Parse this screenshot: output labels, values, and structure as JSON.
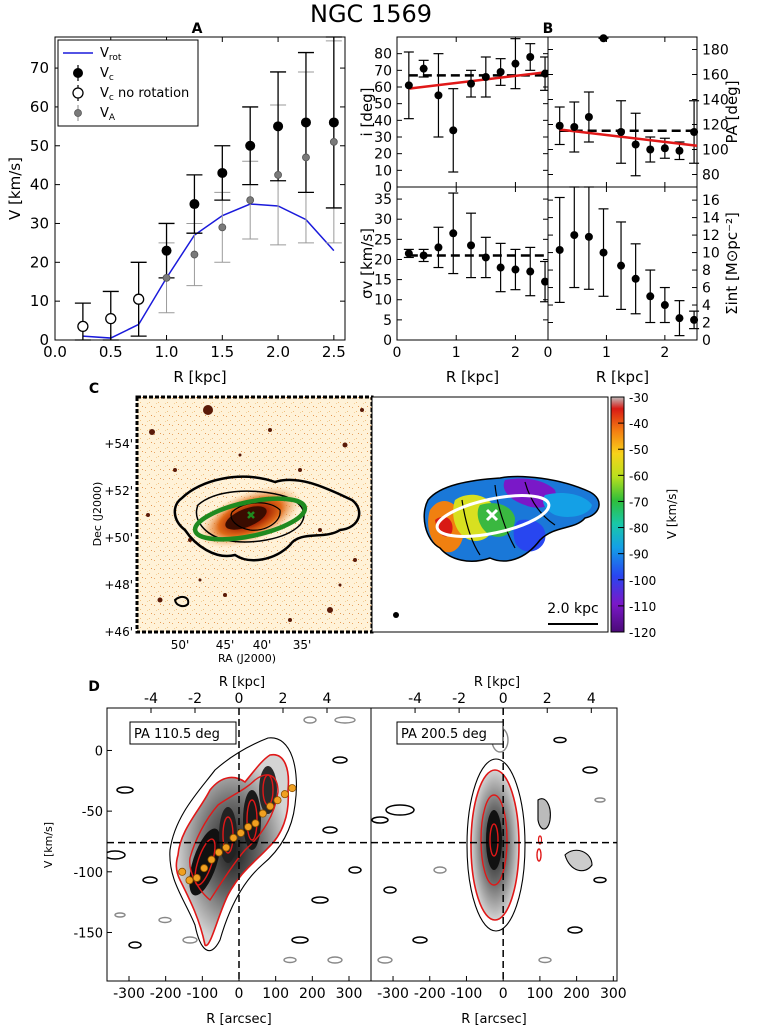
{
  "title": "NGC 1569",
  "panel_labels": {
    "a": "A",
    "b": "B",
    "c": "C",
    "d": "D"
  },
  "chart_data": [
    {
      "id": "A",
      "type": "scatter",
      "xlabel": "R [kpc]",
      "ylabel": "V [km/s]",
      "xlim": [
        0.0,
        2.6
      ],
      "ylim": [
        0,
        78
      ],
      "xticks": [
        0.0,
        0.5,
        1.0,
        1.5,
        2.0,
        2.5
      ],
      "xticklabels": [
        "0.0",
        "0.5",
        "1.0",
        "1.5",
        "2.0",
        "2.5"
      ],
      "yticks": [
        0,
        10,
        20,
        30,
        40,
        50,
        60,
        70
      ],
      "legend": {
        "position": "top-left",
        "entries": [
          {
            "sym": "line",
            "main": "V",
            "sub": "rot"
          },
          {
            "sym": "filled",
            "main": "V",
            "sub": "c"
          },
          {
            "sym": "open",
            "main": "V",
            "sub": "c",
            "tail": " no rotation"
          },
          {
            "sym": "grey",
            "main": "V",
            "sub": "A"
          }
        ]
      },
      "series": [
        {
          "name": "Vrot",
          "style": "line",
          "color": "#1a1adb",
          "x": [
            0.25,
            0.5,
            0.75,
            1.0,
            1.25,
            1.5,
            1.75,
            2.0,
            2.25,
            2.5
          ],
          "y": [
            1,
            0.5,
            4,
            16,
            27,
            32,
            35,
            34.5,
            31,
            23
          ]
        },
        {
          "name": "Vc",
          "style": "filled",
          "color": "#000000",
          "x": [
            1.0,
            1.25,
            1.5,
            1.75,
            2.0,
            2.25,
            2.5
          ],
          "y": [
            23,
            35,
            43,
            50,
            55,
            56,
            56
          ],
          "err": [
            7,
            7.5,
            7,
            10,
            14,
            18,
            22
          ]
        },
        {
          "name": "Vc no rotation",
          "style": "open",
          "color": "#000000",
          "x": [
            0.25,
            0.5,
            0.75
          ],
          "y": [
            3.5,
            5.5,
            10.5
          ],
          "err": [
            6,
            7,
            9.5
          ]
        },
        {
          "name": "VA",
          "style": "grey",
          "color": "#7a7a7a",
          "x": [
            1.0,
            1.25,
            1.5,
            1.75,
            2.0,
            2.25,
            2.5
          ],
          "y": [
            16,
            22,
            29,
            36,
            42.5,
            47,
            51
          ],
          "err": [
            9,
            8,
            9,
            10,
            18,
            22,
            26
          ]
        }
      ]
    },
    {
      "id": "B-i",
      "type": "scatter",
      "ylabel": "i [deg]",
      "xlim": [
        0.0,
        2.55
      ],
      "ylim": [
        0,
        90
      ],
      "yticks": [
        0,
        10,
        20,
        30,
        40,
        50,
        60,
        70,
        80
      ],
      "x": [
        0.2,
        0.45,
        0.7,
        0.95,
        1.25,
        1.5,
        1.75,
        2.0,
        2.25,
        2.5
      ],
      "y": [
        61,
        71,
        55,
        34,
        62,
        66,
        69,
        74,
        78,
        68
      ],
      "err": [
        20,
        5,
        25,
        25,
        8,
        12,
        8,
        15,
        8,
        10
      ],
      "fit": {
        "x": [
          0.2,
          2.55
        ],
        "y": [
          59,
          69
        ]
      },
      "mean": 67
    },
    {
      "id": "B-PA",
      "type": "scatter",
      "ylabel": "PA [deg]",
      "xlim": [
        0.0,
        2.55
      ],
      "ylim": [
        70,
        190
      ],
      "yticks": [
        80,
        100,
        120,
        140,
        160,
        180
      ],
      "yticks_side": "right",
      "x": [
        0.2,
        0.45,
        0.7,
        0.95,
        1.25,
        1.5,
        1.75,
        2.0,
        2.25,
        2.5
      ],
      "y": [
        119,
        118,
        126,
        189,
        114,
        104,
        100,
        101,
        99,
        114
      ],
      "err": [
        15,
        20,
        20,
        0,
        25,
        25,
        10,
        8,
        7,
        25
      ],
      "fit": {
        "x": [
          0.2,
          2.55
        ],
        "y": [
          116,
          103
        ]
      },
      "mean": 115
    },
    {
      "id": "B-sigma",
      "type": "scatter",
      "xlabel": "R [kpc]",
      "ylabel": "σv [km/s]",
      "xlim": [
        0.0,
        2.55
      ],
      "ylim": [
        0,
        38
      ],
      "yticks": [
        0,
        5,
        10,
        15,
        20,
        25,
        30,
        35
      ],
      "xticks": [
        0,
        1,
        2
      ],
      "x": [
        0.2,
        0.45,
        0.7,
        0.95,
        1.25,
        1.5,
        1.75,
        2.0,
        2.25,
        2.5
      ],
      "y": [
        21.5,
        21,
        23,
        26.5,
        23.5,
        20.5,
        18,
        17.5,
        17,
        14.5
      ],
      "err": [
        1,
        1.5,
        5,
        10,
        8,
        5,
        6,
        5,
        6,
        5
      ],
      "mean": 21
    },
    {
      "id": "B-sigma-int",
      "type": "scatter",
      "xlabel": "R [kpc]",
      "ylabel": "Σint [M⊙pc⁻²]",
      "xlim": [
        0.0,
        2.55
      ],
      "ylim": [
        0,
        17.5
      ],
      "yticks": [
        0,
        2,
        4,
        6,
        8,
        10,
        12,
        14,
        16
      ],
      "yticks_side": "right",
      "xticks": [
        0,
        1,
        2
      ],
      "x": [
        0.2,
        0.45,
        0.7,
        0.95,
        1.25,
        1.5,
        1.75,
        2.0,
        2.25,
        2.5
      ],
      "y": [
        10.3,
        12,
        11.8,
        10,
        8.5,
        7,
        5,
        4,
        2.5,
        2.3
      ],
      "err": [
        6,
        6,
        6,
        5,
        5,
        4,
        3,
        2,
        2,
        1
      ]
    },
    {
      "id": "C",
      "type": "heatmap",
      "xlabel": "RA (J2000)",
      "ylabel": "Dec (J2000)",
      "xticklabels": [
        "50'",
        "45'",
        "40'",
        "35'"
      ],
      "yticklabels": [
        "+46'",
        "+48'",
        "+50'",
        "+52'",
        "+54'"
      ],
      "colorbar": {
        "label": "V [km/s]",
        "min": -120,
        "max": -30,
        "ticks": [
          -30,
          -40,
          -50,
          -60,
          -70,
          -80,
          -90,
          -100,
          -110,
          -120
        ]
      },
      "scale_bar": "2.0 kpc"
    },
    {
      "id": "D",
      "type": "heatmap",
      "xlabel": "R [arcsec]",
      "top_xlabel": "R [kpc]",
      "ylabel": "V [km/s]",
      "xticks": [
        -300,
        -200,
        -100,
        0,
        100,
        200,
        300
      ],
      "top_xticks": [
        -4,
        -2,
        0,
        2,
        4
      ],
      "yticks": [
        0,
        -50,
        -100,
        -150
      ],
      "ylim": [
        -190,
        35
      ],
      "systemic_v": -76,
      "panels": [
        "PA 110.5 deg",
        "PA 200.5 deg"
      ],
      "points": {
        "x": [
          -155,
          -135,
          -115,
          -95,
          -75,
          -55,
          -35,
          -15,
          5,
          25,
          45,
          65,
          85,
          105,
          125,
          145
        ],
        "y": [
          -100,
          -107,
          -105,
          -97,
          -90,
          -84,
          -80,
          -72,
          -68,
          -63,
          -60,
          -52,
          -46,
          -41,
          -36,
          -31
        ]
      }
    }
  ]
}
